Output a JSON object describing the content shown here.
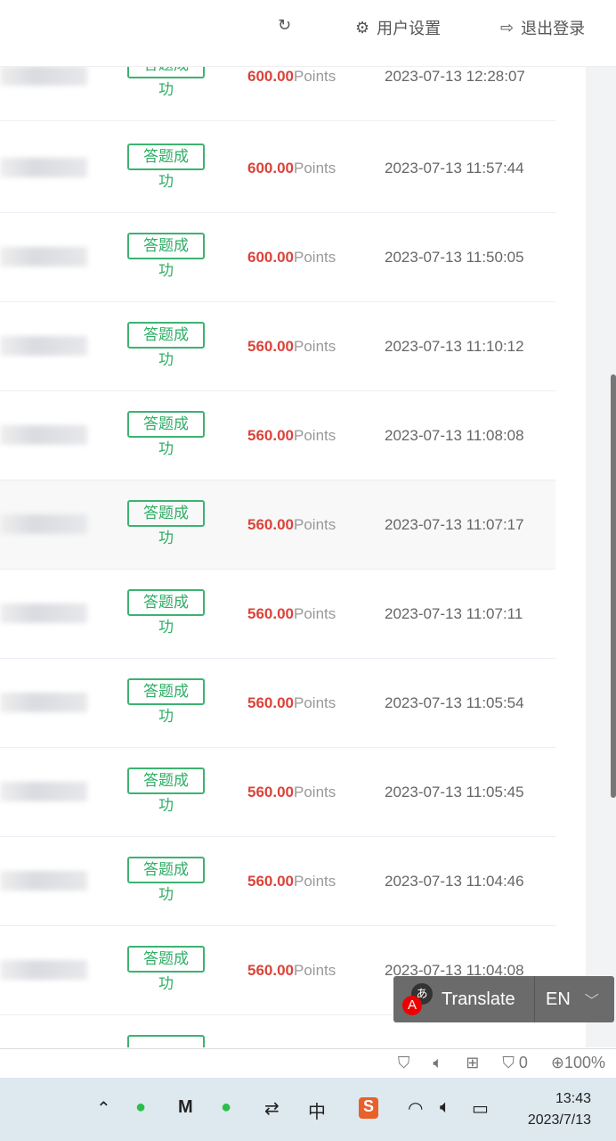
{
  "header": {
    "refresh_icon": "refresh-icon",
    "user_settings": "用户设置",
    "logout": "退出登录"
  },
  "rows": [
    {
      "status": "答题成",
      "status2": "功",
      "amount": "600.00",
      "unit": "Points",
      "time": "2023-07-13 12:28:07"
    },
    {
      "status": "答题成",
      "status2": "功",
      "amount": "600.00",
      "unit": "Points",
      "time": "2023-07-13 11:57:44"
    },
    {
      "status": "答题成",
      "status2": "功",
      "amount": "600.00",
      "unit": "Points",
      "time": "2023-07-13 11:50:05"
    },
    {
      "status": "答题成",
      "status2": "功",
      "amount": "560.00",
      "unit": "Points",
      "time": "2023-07-13 11:10:12"
    },
    {
      "status": "答题成",
      "status2": "功",
      "amount": "560.00",
      "unit": "Points",
      "time": "2023-07-13 11:08:08"
    },
    {
      "status": "答题成",
      "status2": "功",
      "amount": "560.00",
      "unit": "Points",
      "time": "2023-07-13 11:07:17"
    },
    {
      "status": "答题成",
      "status2": "功",
      "amount": "560.00",
      "unit": "Points",
      "time": "2023-07-13 11:07:11"
    },
    {
      "status": "答题成",
      "status2": "功",
      "amount": "560.00",
      "unit": "Points",
      "time": "2023-07-13 11:05:54"
    },
    {
      "status": "答题成",
      "status2": "功",
      "amount": "560.00",
      "unit": "Points",
      "time": "2023-07-13 11:05:45"
    },
    {
      "status": "答题成",
      "status2": "功",
      "amount": "560.00",
      "unit": "Points",
      "time": "2023-07-13 11:04:46"
    },
    {
      "status": "答题成",
      "status2": "功",
      "amount": "560.00",
      "unit": "Points",
      "time": "2023-07-13 11:04:08"
    }
  ],
  "translate": {
    "label": "Translate",
    "lang": "EN"
  },
  "statusbar": {
    "ad_count": "0",
    "zoom": "100%"
  },
  "taskbar": {
    "time": "13:43",
    "date": "2023/7/13",
    "ime": "中"
  },
  "colors": {
    "success": "#2fae66",
    "amount": "#d9443a"
  }
}
